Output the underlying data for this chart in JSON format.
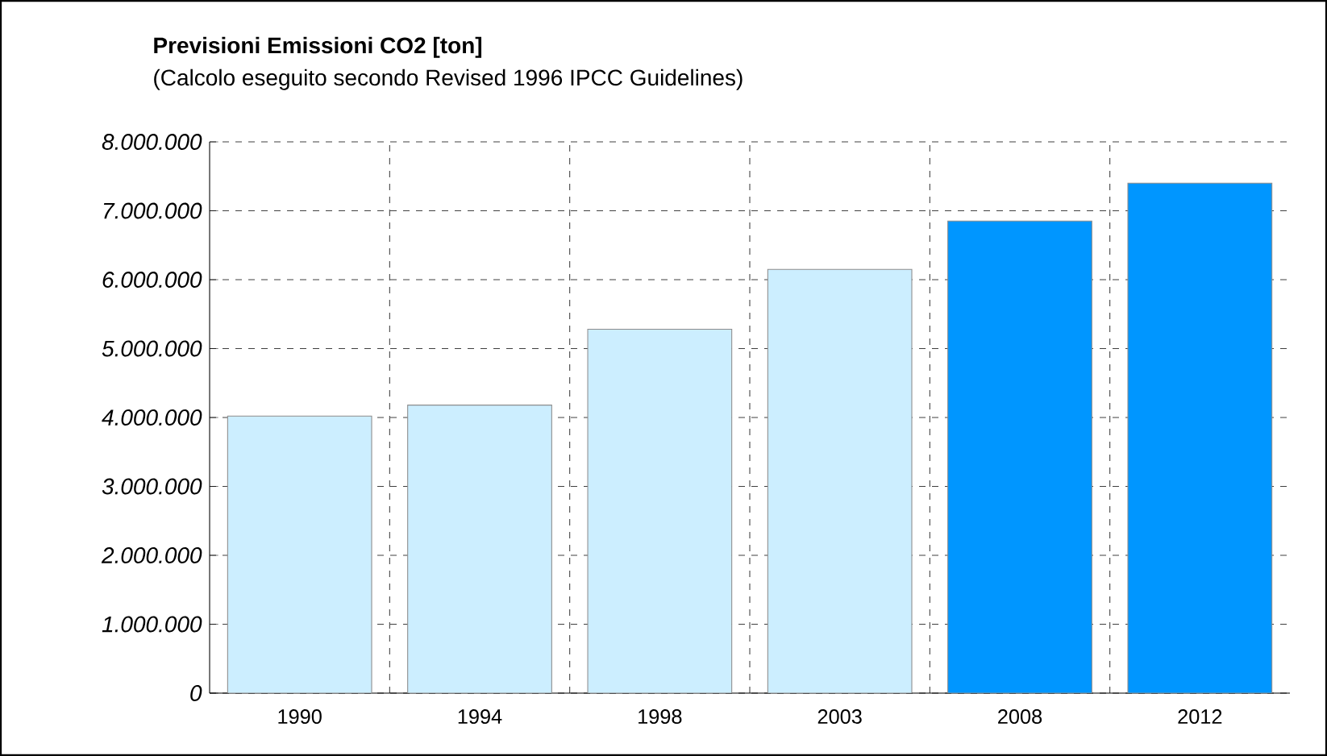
{
  "chart_data": {
    "type": "bar",
    "title": "Previsioni Emissioni CO2 [ton]",
    "subtitle": "(Calcolo eseguito secondo Revised 1996 IPCC Guidelines)",
    "categories": [
      "1990",
      "1994",
      "1998",
      "2003",
      "2008",
      "2012"
    ],
    "values": [
      4020000,
      4180000,
      5280000,
      6150000,
      6850000,
      7400000
    ],
    "colors": [
      "#cceeff",
      "#cceeff",
      "#cceeff",
      "#cceeff",
      "#0096ff",
      "#0096ff"
    ],
    "ylim": [
      0,
      8000000
    ],
    "yticks": [
      {
        "value": 0,
        "label": "0"
      },
      {
        "value": 1000000,
        "label": "1.000.000"
      },
      {
        "value": 2000000,
        "label": "2.000.000"
      },
      {
        "value": 3000000,
        "label": "3.000.000"
      },
      {
        "value": 4000000,
        "label": "4.000.000"
      },
      {
        "value": 5000000,
        "label": "5.000.000"
      },
      {
        "value": 6000000,
        "label": "6.000.000"
      },
      {
        "value": 7000000,
        "label": "7.000.000"
      },
      {
        "value": 8000000,
        "label": "8.000.000"
      }
    ],
    "grid": true
  }
}
